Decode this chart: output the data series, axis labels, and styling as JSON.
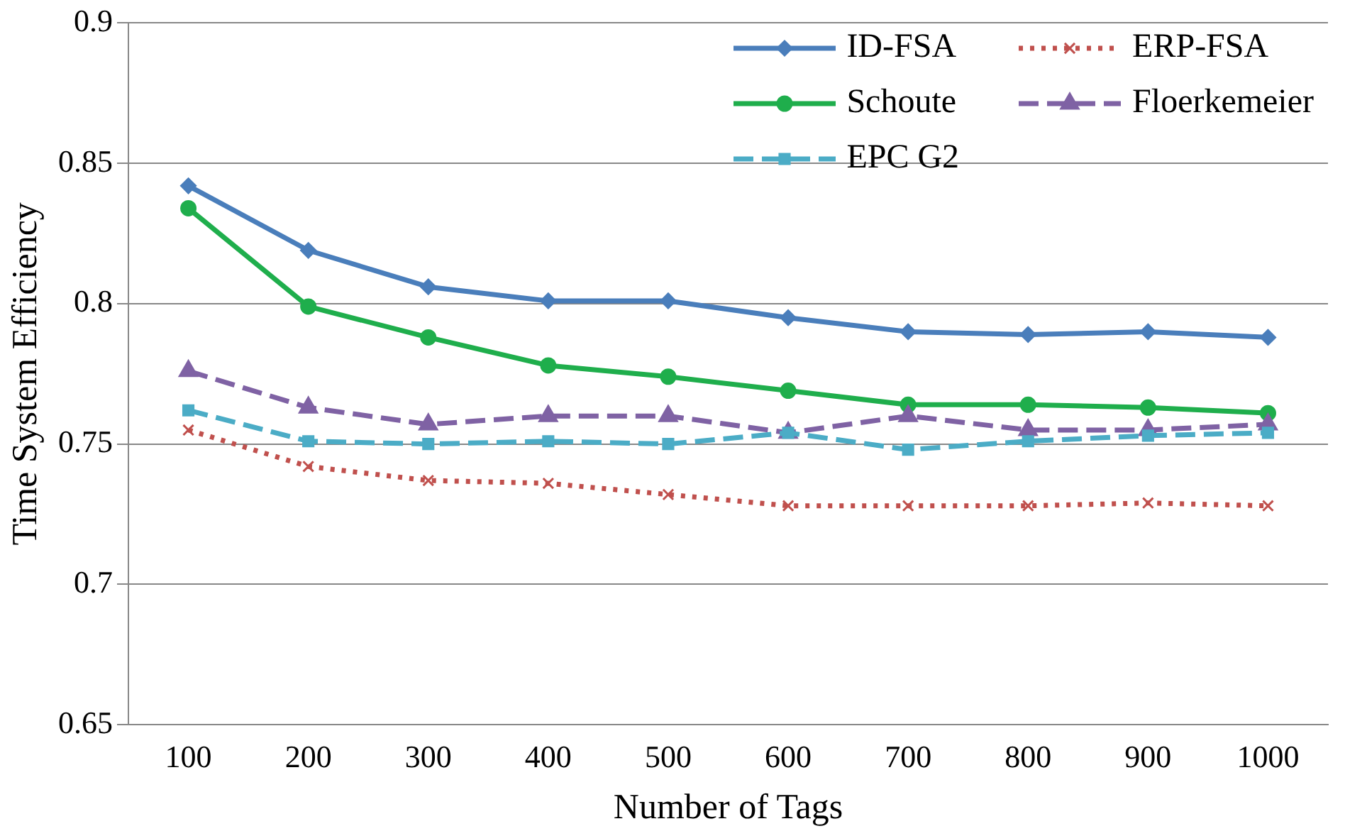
{
  "chart_data": {
    "type": "line",
    "xlabel": "Number of Tags",
    "ylabel": "Time System Efficiency",
    "categories": [
      "100",
      "200",
      "300",
      "400",
      "500",
      "600",
      "700",
      "800",
      "900",
      "1000"
    ],
    "ylim": [
      0.65,
      0.9
    ],
    "yticks": [
      0.65,
      0.7,
      0.75,
      0.8,
      0.85,
      0.9
    ],
    "grid": "y",
    "legend": "top right",
    "series": [
      {
        "name": "ID-FSA",
        "color": "#4a7ebb",
        "marker": "diamond",
        "line_style": "solid",
        "values": [
          0.842,
          0.819,
          0.806,
          0.801,
          0.801,
          0.795,
          0.79,
          0.789,
          0.79,
          0.788
        ]
      },
      {
        "name": "ERP-FSA",
        "color": "#c0504d",
        "marker": "cross",
        "line_style": "dotted",
        "values": [
          0.755,
          0.742,
          0.737,
          0.736,
          0.732,
          0.728,
          0.728,
          0.728,
          0.729,
          0.728
        ]
      },
      {
        "name": "Schoute",
        "color": "#1fae4c",
        "marker": "circle",
        "line_style": "solid",
        "values": [
          0.834,
          0.799,
          0.788,
          0.778,
          0.774,
          0.769,
          0.764,
          0.764,
          0.763,
          0.761
        ]
      },
      {
        "name": "Floerkemeier",
        "color": "#7f62a4",
        "marker": "triangle",
        "line_style": "dashed",
        "values": [
          0.776,
          0.763,
          0.757,
          0.76,
          0.76,
          0.754,
          0.76,
          0.755,
          0.755,
          0.757
        ]
      },
      {
        "name": "EPC G2",
        "color": "#4bacc6",
        "marker": "square",
        "line_style": "dashed",
        "values": [
          0.762,
          0.751,
          0.75,
          0.751,
          0.75,
          0.754,
          0.748,
          0.751,
          0.753,
          0.754
        ]
      }
    ]
  }
}
